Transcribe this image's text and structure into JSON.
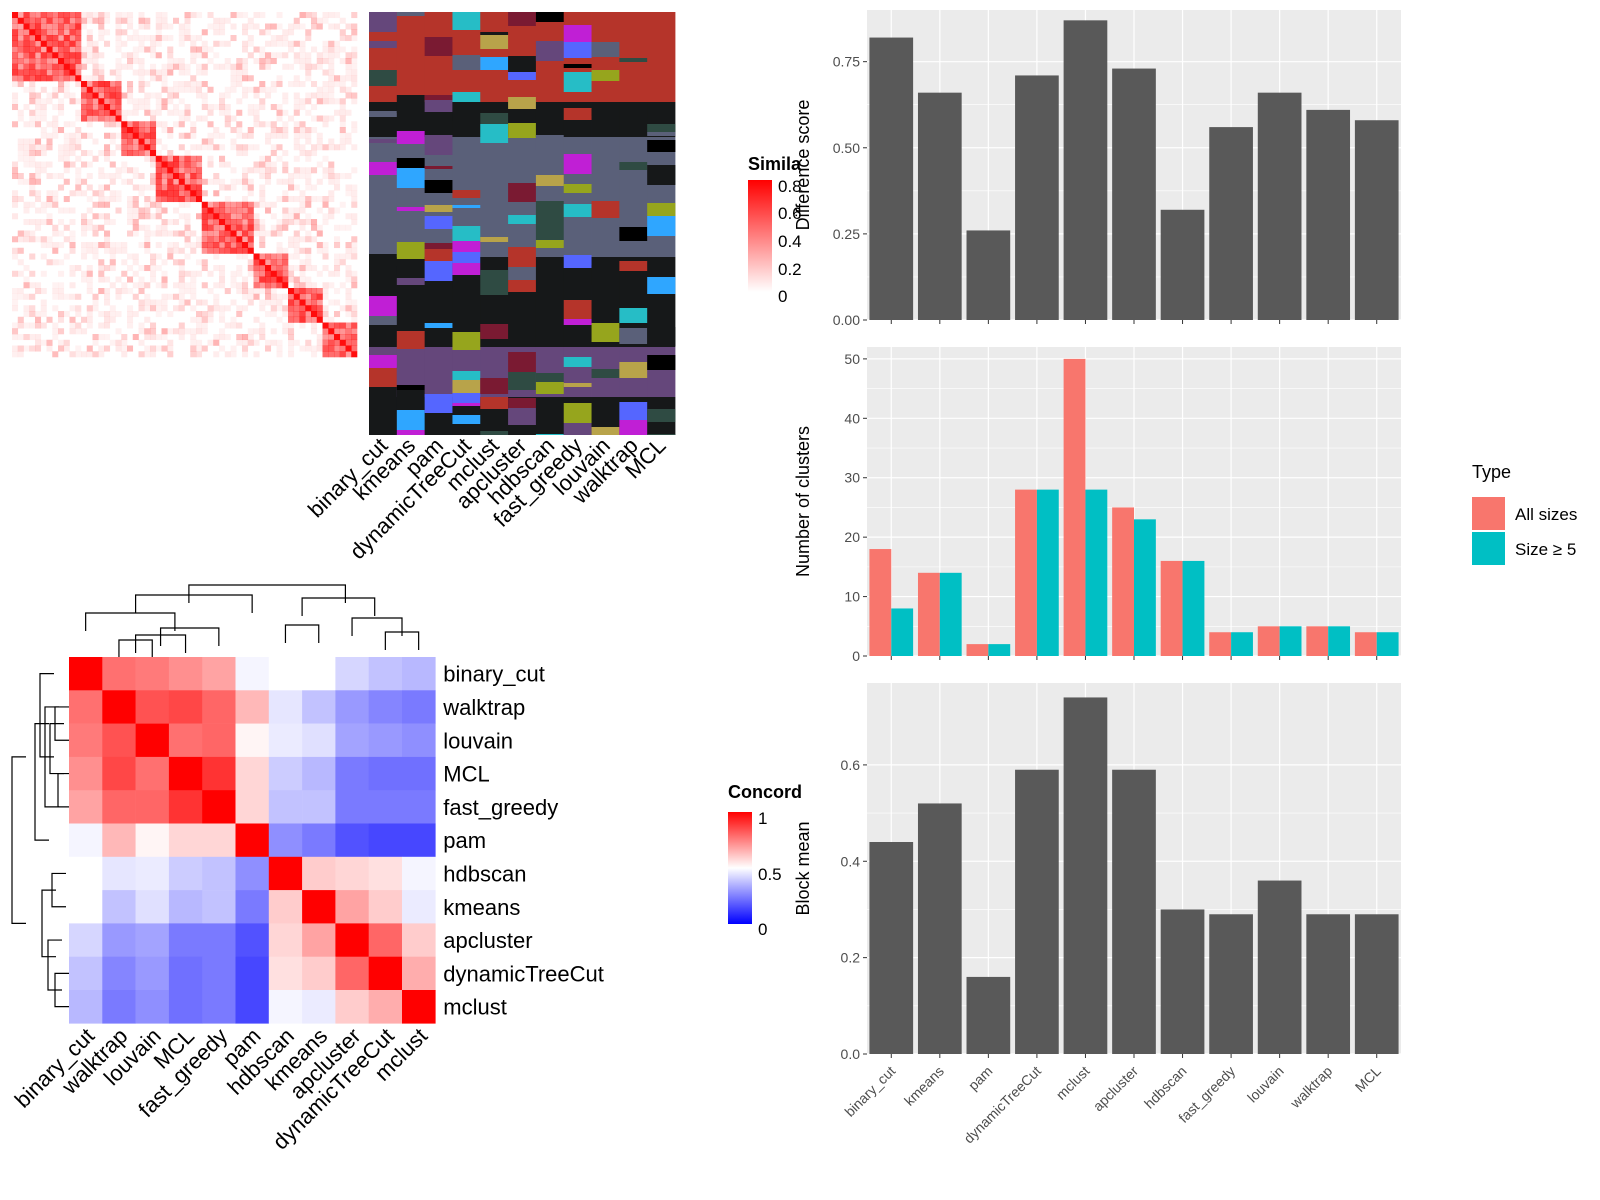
{
  "methods": [
    "binary_cut",
    "kmeans",
    "pam",
    "dynamicTreeCut",
    "mclust",
    "apcluster",
    "hdbscan",
    "fast_greedy",
    "louvain",
    "walktrap",
    "MCL"
  ],
  "similarity_legend": {
    "title": "Simila",
    "ticks": [
      "0.8",
      "0.6",
      "0.4",
      "0.2",
      "0"
    ]
  },
  "concordance_legend": {
    "title": "Concord",
    "ticks": [
      "1",
      "0.5",
      "0"
    ]
  },
  "concordance_order": [
    "binary_cut",
    "walktrap",
    "louvain",
    "MCL",
    "fast_greedy",
    "pam",
    "hdbscan",
    "kmeans",
    "apcluster",
    "dynamicTreeCut",
    "mclust"
  ],
  "colors": {
    "bar": "#595959",
    "panel_bg": "#ebebeb",
    "grid": "#ffffff",
    "all_sizes": "#F8766D",
    "size_ge5": "#00BFC4",
    "heat_high": "#ff0000",
    "heat_mid": "#ffffff",
    "heat_low": "#0000ff"
  },
  "chart_data": [
    {
      "type": "heatmap",
      "name": "concordance",
      "categories": [
        "binary_cut",
        "walktrap",
        "louvain",
        "MCL",
        "fast_greedy",
        "pam",
        "hdbscan",
        "kmeans",
        "apcluster",
        "dynamicTreeCut",
        "mclust"
      ],
      "values": [
        [
          1.0,
          0.78,
          0.76,
          0.72,
          0.68,
          0.48,
          0.5,
          0.5,
          0.42,
          0.38,
          0.36
        ],
        [
          0.78,
          1.0,
          0.84,
          0.86,
          0.8,
          0.64,
          0.45,
          0.38,
          0.3,
          0.26,
          0.24
        ],
        [
          0.76,
          0.84,
          1.0,
          0.78,
          0.8,
          0.52,
          0.46,
          0.44,
          0.32,
          0.3,
          0.28
        ],
        [
          0.72,
          0.86,
          0.78,
          1.0,
          0.9,
          0.58,
          0.4,
          0.36,
          0.24,
          0.22,
          0.22
        ],
        [
          0.68,
          0.8,
          0.8,
          0.9,
          1.0,
          0.58,
          0.38,
          0.38,
          0.24,
          0.24,
          0.24
        ],
        [
          0.48,
          0.64,
          0.52,
          0.58,
          0.58,
          1.0,
          0.28,
          0.24,
          0.16,
          0.14,
          0.14
        ],
        [
          0.5,
          0.45,
          0.46,
          0.4,
          0.38,
          0.28,
          1.0,
          0.6,
          0.58,
          0.56,
          0.48
        ],
        [
          0.5,
          0.38,
          0.44,
          0.36,
          0.38,
          0.24,
          0.6,
          1.0,
          0.68,
          0.6,
          0.46
        ],
        [
          0.42,
          0.3,
          0.32,
          0.24,
          0.24,
          0.16,
          0.58,
          0.68,
          1.0,
          0.8,
          0.6
        ],
        [
          0.38,
          0.26,
          0.3,
          0.22,
          0.24,
          0.14,
          0.56,
          0.6,
          0.8,
          1.0,
          0.66
        ],
        [
          0.36,
          0.24,
          0.28,
          0.22,
          0.24,
          0.14,
          0.48,
          0.46,
          0.6,
          0.66,
          1.0
        ]
      ],
      "range": [
        0,
        1
      ]
    },
    {
      "type": "bar",
      "name": "difference",
      "categories": [
        "binary_cut",
        "kmeans",
        "pam",
        "dynamicTreeCut",
        "mclust",
        "apcluster",
        "hdbscan",
        "fast_greedy",
        "louvain",
        "walktrap",
        "MCL"
      ],
      "values": [
        0.82,
        0.66,
        0.26,
        0.71,
        0.87,
        0.73,
        0.32,
        0.56,
        0.66,
        0.61,
        0.58
      ],
      "ylabel": "Difference score",
      "ylim": [
        0,
        0.9
      ],
      "yticks": [
        0.0,
        0.25,
        0.5,
        0.75
      ],
      "ytick_labels": [
        "0.00",
        "0.25",
        "0.50",
        "0.75"
      ]
    },
    {
      "type": "bar",
      "name": "clusters",
      "categories": [
        "binary_cut",
        "kmeans",
        "pam",
        "dynamicTreeCut",
        "mclust",
        "apcluster",
        "hdbscan",
        "fast_greedy",
        "louvain",
        "walktrap",
        "MCL"
      ],
      "series": [
        {
          "name": "All sizes",
          "values": [
            18,
            14,
            2,
            28,
            50,
            25,
            16,
            4,
            5,
            5,
            4
          ]
        },
        {
          "name": "Size ≥ 5",
          "values": [
            8,
            14,
            2,
            28,
            28,
            23,
            16,
            4,
            5,
            5,
            4
          ]
        }
      ],
      "ylabel": "Number of clusters",
      "ylim": [
        0,
        52
      ],
      "yticks": [
        0,
        10,
        20,
        30,
        40,
        50
      ],
      "ytick_labels": [
        "0",
        "10",
        "20",
        "30",
        "40",
        "50"
      ],
      "legend": {
        "title": "Type",
        "position": "right"
      }
    },
    {
      "type": "bar",
      "name": "blockmean",
      "categories": [
        "binary_cut",
        "kmeans",
        "pam",
        "dynamicTreeCut",
        "mclust",
        "apcluster",
        "hdbscan",
        "fast_greedy",
        "louvain",
        "walktrap",
        "MCL"
      ],
      "values": [
        0.44,
        0.52,
        0.16,
        0.59,
        0.74,
        0.59,
        0.3,
        0.29,
        0.36,
        0.29,
        0.29
      ],
      "ylabel": "Block mean",
      "ylim": [
        0,
        0.77
      ],
      "yticks": [
        0.0,
        0.2,
        0.4,
        0.6
      ],
      "ytick_labels": [
        "0.0",
        "0.2",
        "0.4",
        "0.6"
      ]
    }
  ]
}
